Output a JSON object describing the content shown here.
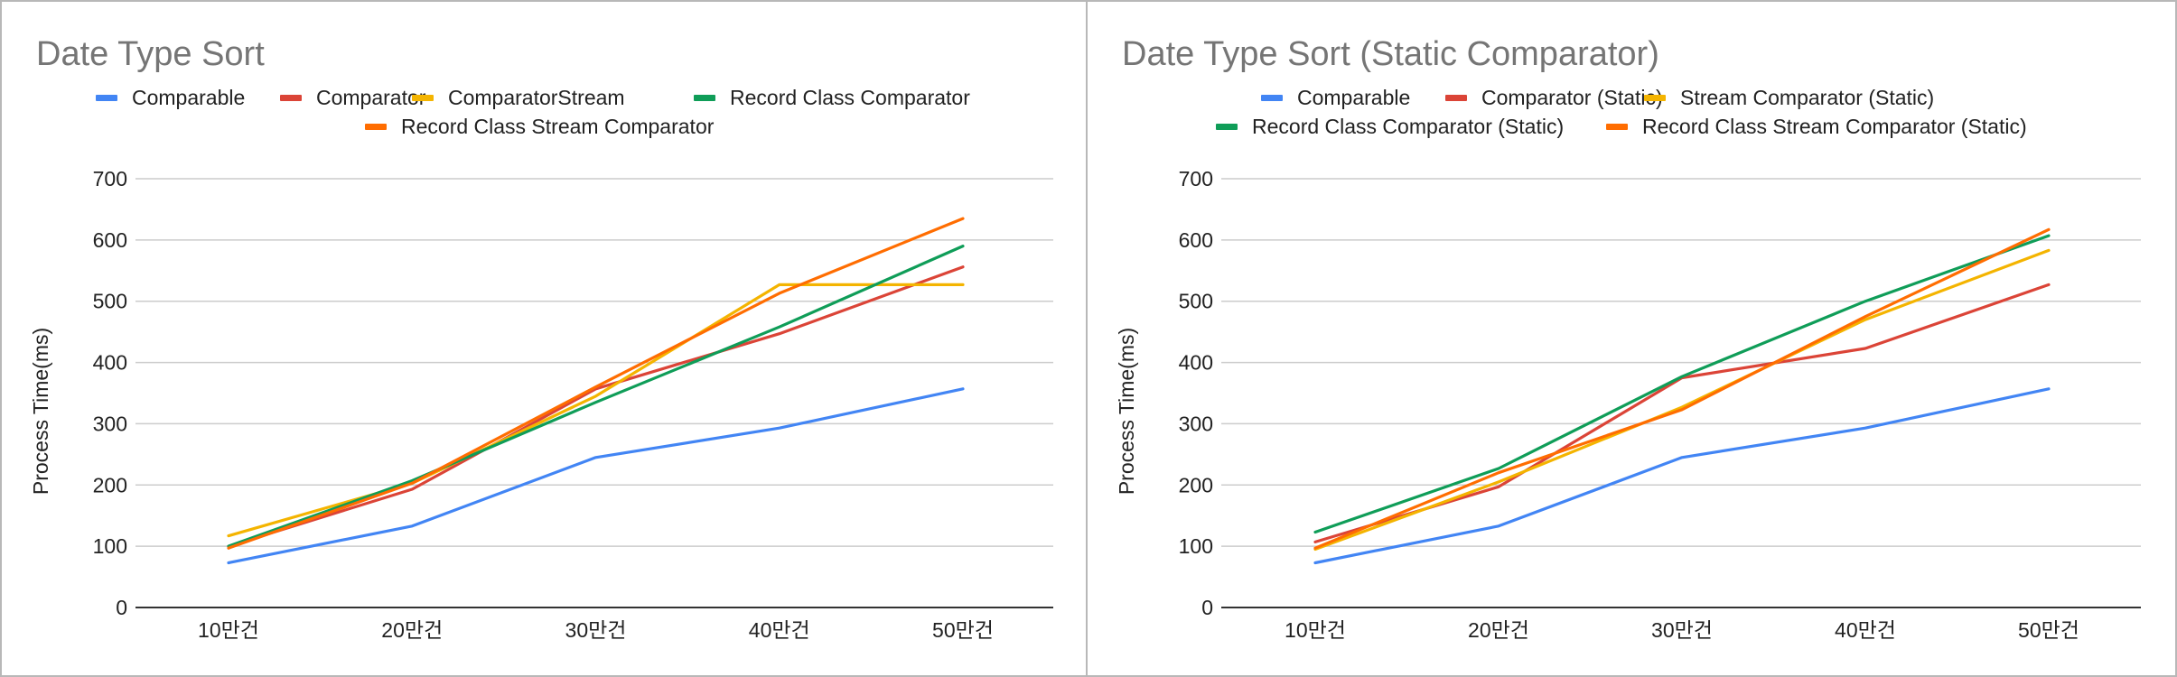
{
  "chart_data": [
    {
      "type": "line",
      "title": "Date Type Sort",
      "xlabel": "",
      "ylabel": "Process Time(ms)",
      "ylim": [
        0,
        700
      ],
      "yticks": [
        0,
        100,
        200,
        300,
        400,
        500,
        600,
        700
      ],
      "grid": true,
      "legend": "top",
      "categories": [
        "10만건",
        "20만건",
        "30만건",
        "40만건",
        "50만건"
      ],
      "series": [
        {
          "name": "Comparable",
          "color": "#4285F4",
          "values": [
            73,
            133,
            245,
            293,
            357
          ]
        },
        {
          "name": "Comparator",
          "color": "#DB4437",
          "values": [
            100,
            193,
            357,
            447,
            556
          ]
        },
        {
          "name": "ComparatorStream",
          "color": "#F4B400",
          "values": [
            117,
            203,
            345,
            527,
            527
          ]
        },
        {
          "name": "Record Class Comparator",
          "color": "#0F9D58",
          "values": [
            100,
            207,
            335,
            458,
            590
          ]
        },
        {
          "name": "Record Class Stream Comparator",
          "color": "#FF6D01",
          "values": [
            97,
            203,
            360,
            513,
            635
          ]
        }
      ]
    },
    {
      "type": "line",
      "title": "Date Type Sort (Static Comparator)",
      "xlabel": "",
      "ylabel": "Process Time(ms)",
      "ylim": [
        0,
        700
      ],
      "yticks": [
        0,
        100,
        200,
        300,
        400,
        500,
        600,
        700
      ],
      "grid": true,
      "legend": "top",
      "categories": [
        "10만건",
        "20만건",
        "30만건",
        "40만건",
        "50만건"
      ],
      "series": [
        {
          "name": "Comparable",
          "color": "#4285F4",
          "values": [
            73,
            133,
            245,
            293,
            357
          ]
        },
        {
          "name": "Comparator (Static)",
          "color": "#DB4437",
          "values": [
            107,
            197,
            375,
            423,
            527
          ]
        },
        {
          "name": "Stream Comparator (Static)",
          "color": "#F4B400",
          "values": [
            95,
            205,
            327,
            470,
            583
          ]
        },
        {
          "name": "Record Class Comparator (Static)",
          "color": "#0F9D58",
          "values": [
            123,
            227,
            377,
            500,
            607
          ]
        },
        {
          "name": "Record Class Stream Comparator (Static)",
          "color": "#FF6D01",
          "values": [
            97,
            220,
            323,
            475,
            617
          ]
        }
      ]
    }
  ]
}
